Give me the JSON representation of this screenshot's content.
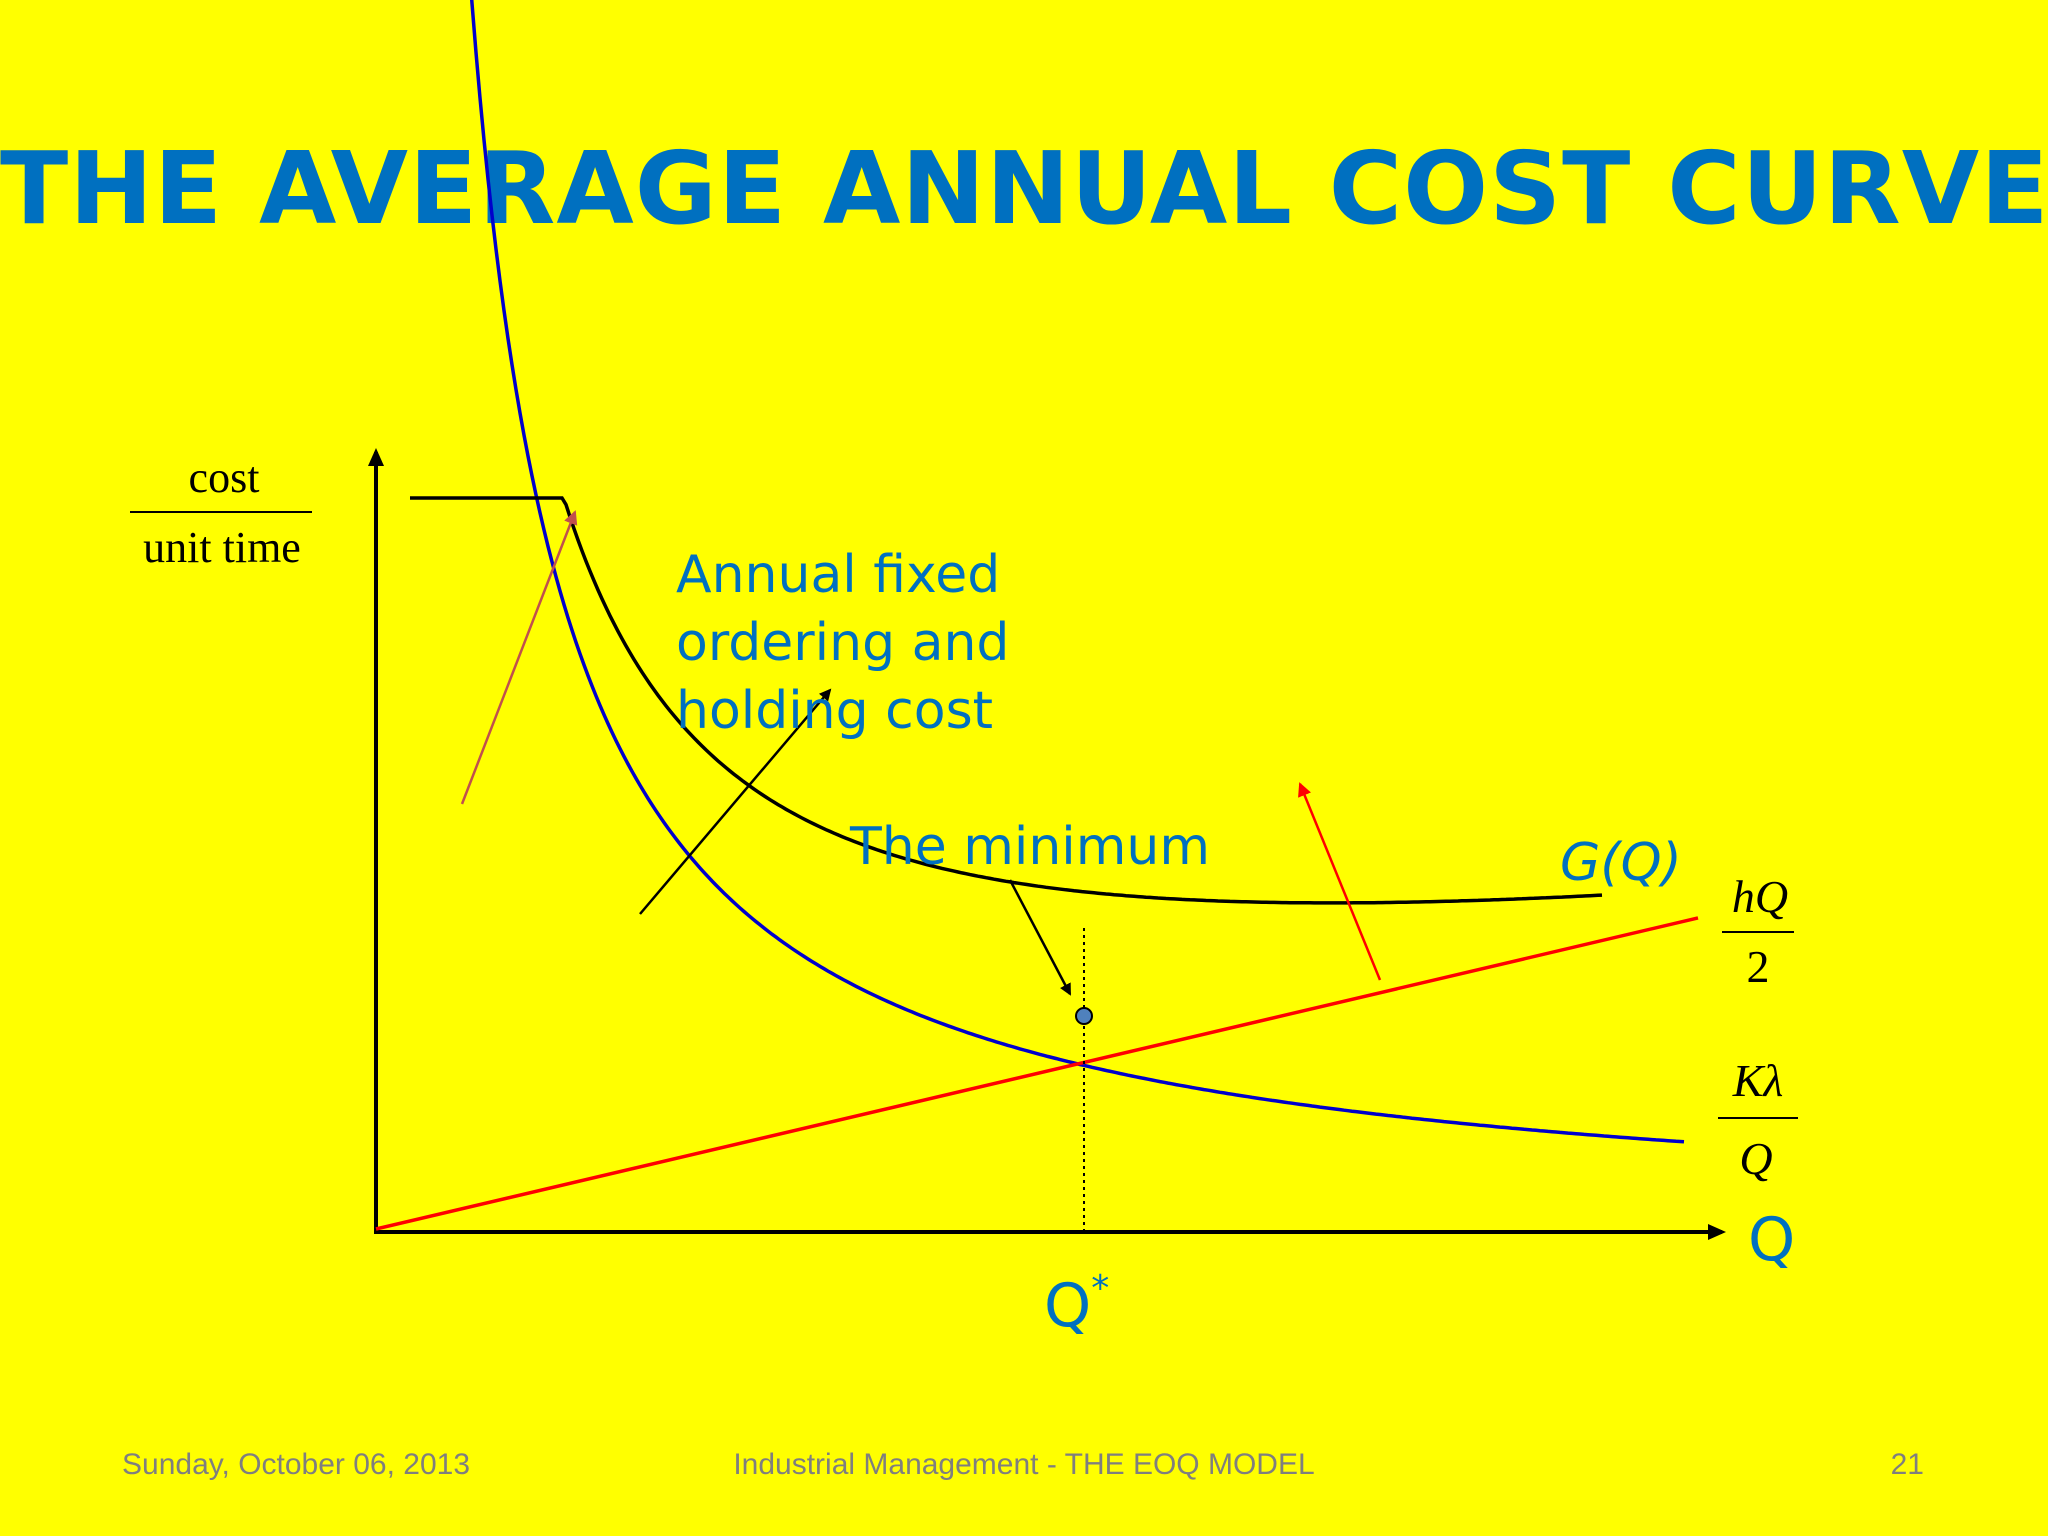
{
  "title": "THE AVERAGE ANNUAL COST CURVE",
  "footer": {
    "date": "Sunday, October 06, 2013",
    "center": "Industrial Management - THE EOQ MODEL",
    "page": "21"
  },
  "colors": {
    "background": "#ffff00",
    "accent": "#0070c0",
    "total_cost": "#000000",
    "ordering_cost": "#0000cc",
    "holding_cost": "#ff0000",
    "annotation_arrow": "#c0504d"
  },
  "chart_data": {
    "type": "line",
    "title": "",
    "ylabel": {
      "numerator": "cost",
      "denominator": "unit time"
    },
    "xlabel": "Q",
    "optimum_label": "Q",
    "optimum_superscript": "*",
    "annotations": {
      "annual_cost_lines": [
        "Annual fixed",
        "ordering and",
        "holding cost"
      ],
      "minimum": "The minimum",
      "total_curve": "G(Q)"
    },
    "series": [
      {
        "name": "G(Q)",
        "formula": "hQ/2 + Kλ/Q",
        "color": "#000000"
      },
      {
        "name": "hQ/2",
        "numerator": "hQ",
        "denominator": "2",
        "color": "#ff0000"
      },
      {
        "name": "Kλ/Q",
        "numerator": "Kλ",
        "denominator": "Q",
        "color": "#0000cc"
      }
    ]
  }
}
